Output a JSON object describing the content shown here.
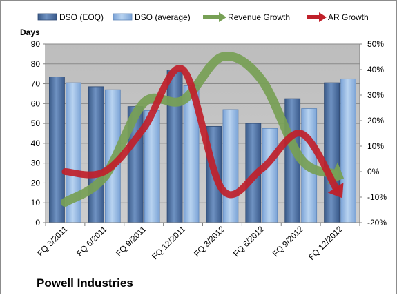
{
  "chart_data": {
    "type": "bar",
    "title": "Powell Industries",
    "ylabel": "Days",
    "ylim": [
      0,
      90
    ],
    "y_ticks": [
      0,
      10,
      20,
      30,
      40,
      50,
      60,
      70,
      80,
      90
    ],
    "y2lim": [
      -20,
      50
    ],
    "y2_ticks": [
      "-20%",
      "-10%",
      "0%",
      "10%",
      "20%",
      "30%",
      "40%",
      "50%"
    ],
    "categories": [
      "FQ 3/2011",
      "FQ 6/2011",
      "FQ 9/2011",
      "FQ 12/2011",
      "FQ 3/2012",
      "FQ 6/2012",
      "FQ 9/2012",
      "FQ 12/2012"
    ],
    "series": [
      {
        "name": "DSO (EOQ)",
        "type": "bar",
        "axis": "left",
        "values": [
          73.5,
          68.5,
          58.5,
          77,
          48.5,
          50,
          62.5,
          70.5
        ]
      },
      {
        "name": "DSO (average)",
        "type": "bar",
        "axis": "left",
        "values": [
          70.5,
          67,
          56.5,
          69,
          57,
          47.5,
          57.5,
          72.5
        ]
      },
      {
        "name": "Revenue Growth",
        "type": "line",
        "axis": "right",
        "values": [
          -12,
          -2,
          27,
          28,
          45,
          36,
          5,
          -2
        ]
      },
      {
        "name": "AR Growth",
        "type": "line",
        "axis": "right",
        "values": [
          0,
          0,
          17,
          40,
          -7,
          1,
          15,
          -9
        ]
      }
    ],
    "grid": true,
    "legend": "top",
    "colors": {
      "dso_eoq": "#4a6c9e",
      "dso_avg": "#8db3e2",
      "revenue_growth": "#77a055",
      "ar_growth": "#c0202a",
      "plot_bg": "#c0c0c0"
    }
  }
}
